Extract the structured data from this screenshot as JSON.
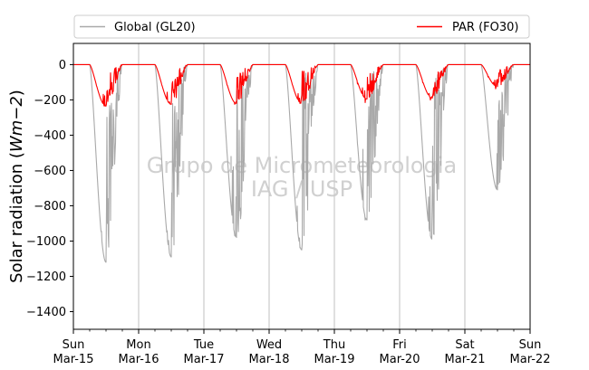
{
  "chart_data": {
    "type": "line",
    "ylabel": "Solar radiation (Wm−2)",
    "ylabel_parts": {
      "text": "Solar radiation (",
      "math": "Wm",
      "sup": "−2",
      "close": ")"
    },
    "ylim": [
      -1500,
      120
    ],
    "xlim": [
      0,
      7
    ],
    "yticks": [
      0,
      -200,
      -400,
      -600,
      -800,
      -1000,
      -1200,
      -1400
    ],
    "ytick_labels": [
      "0",
      "−200",
      "−400",
      "−600",
      "−800",
      "−1000",
      "−1200",
      "−1400"
    ],
    "xticks": [
      {
        "day": "Sun",
        "date": "Mar-15"
      },
      {
        "day": "Mon",
        "date": "Mar-16"
      },
      {
        "day": "Tue",
        "date": "Mar-17"
      },
      {
        "day": "Wed",
        "date": "Mar-18"
      },
      {
        "day": "Thu",
        "date": "Mar-19"
      },
      {
        "day": "Fri",
        "date": "Mar-20"
      },
      {
        "day": "Sat",
        "date": "Mar-21"
      },
      {
        "day": "Sun",
        "date": "Mar-22"
      }
    ],
    "minor_ticks_per_day": 4,
    "grid": "vertical at day boundaries",
    "legend_position": "top, outside plot",
    "watermark": [
      "Grupo de Micrometeorologia",
      "IAG / USP"
    ],
    "series": [
      {
        "name": "Global (GL20)",
        "color": "#a9a9a9",
        "daily_peak": [
          -1120,
          -1090,
          -990,
          -1060,
          -900,
          -990,
          -710
        ],
        "daily_envelope_peak": [
          -1120,
          -1090,
          -980,
          -1050,
          -880,
          -990,
          -710
        ]
      },
      {
        "name": "PAR (FO30)",
        "color": "#ff0000",
        "daily_peak": [
          -240,
          -230,
          -230,
          -225,
          -220,
          -205,
          -140
        ],
        "daily_envelope_peak": [
          -235,
          -225,
          -220,
          -220,
          -195,
          -190,
          -125
        ]
      }
    ],
    "daylight_window": {
      "start_fraction": 0.25,
      "end_fraction": 0.75
    }
  },
  "colors": {
    "axes": "#000000",
    "grid": "#b0b0b0",
    "legend_border": "#cccccc"
  }
}
